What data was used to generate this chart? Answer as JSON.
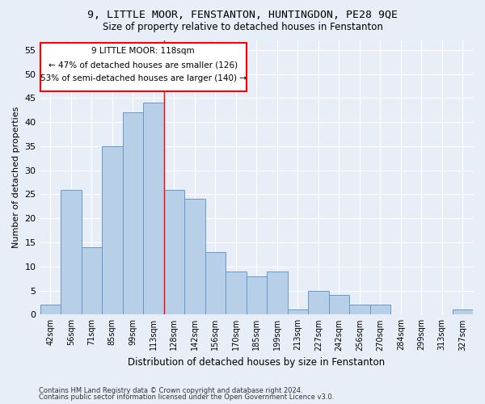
{
  "title_line1": "9, LITTLE MOOR, FENSTANTON, HUNTINGDON, PE28 9QE",
  "title_line2": "Size of property relative to detached houses in Fenstanton",
  "xlabel": "Distribution of detached houses by size in Fenstanton",
  "ylabel": "Number of detached properties",
  "bar_labels": [
    "42sqm",
    "56sqm",
    "71sqm",
    "85sqm",
    "99sqm",
    "113sqm",
    "128sqm",
    "142sqm",
    "156sqm",
    "170sqm",
    "185sqm",
    "199sqm",
    "213sqm",
    "227sqm",
    "242sqm",
    "256sqm",
    "270sqm",
    "284sqm",
    "299sqm",
    "313sqm",
    "327sqm"
  ],
  "bar_values": [
    2,
    26,
    14,
    35,
    42,
    44,
    26,
    24,
    13,
    9,
    8,
    9,
    1,
    5,
    4,
    2,
    2,
    0,
    0,
    0,
    1
  ],
  "bar_color": "#b8cfe8",
  "bar_edge_color": "#6699cc",
  "annotation_line1": "9 LITTLE MOOR: 118sqm",
  "annotation_line2": "← 47% of detached houses are smaller (126)",
  "annotation_line3": "53% of semi-detached houses are larger (140) →",
  "property_line_x": 5.5,
  "ylim": [
    0,
    57
  ],
  "yticks": [
    0,
    5,
    10,
    15,
    20,
    25,
    30,
    35,
    40,
    45,
    50,
    55
  ],
  "background_color": "#e8eef8",
  "grid_color": "#ffffff",
  "footer_line1": "Contains HM Land Registry data © Crown copyright and database right 2024.",
  "footer_line2": "Contains public sector information licensed under the Open Government Licence v3.0."
}
